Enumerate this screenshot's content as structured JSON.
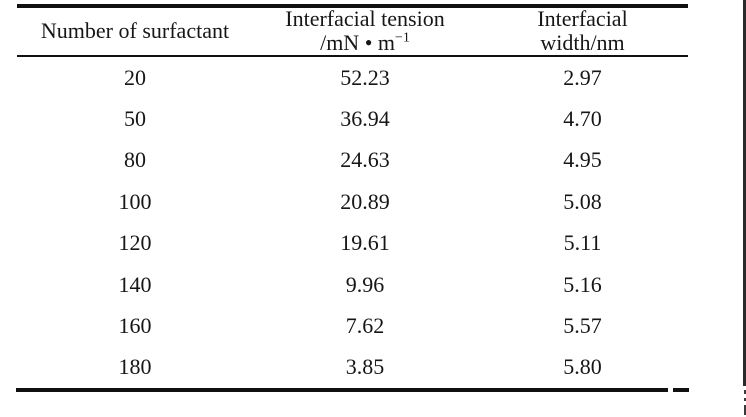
{
  "page": {
    "background": "#ffffff",
    "text_color": "#161616",
    "rule_color": "#111111"
  },
  "table": {
    "header": {
      "col1": "Number of surfactant",
      "col2_line1": "Interfacial tension",
      "col2_unit_base": "/mN • m",
      "col2_unit_sup": "−1",
      "col3_line1": "Interfacial",
      "col3_line2": "width/nm"
    },
    "rows": [
      [
        "20",
        "52.23",
        "2.97"
      ],
      [
        "50",
        "36.94",
        "4.70"
      ],
      [
        "80",
        "24.63",
        "4.95"
      ],
      [
        "100",
        "20.89",
        "5.08"
      ],
      [
        "120",
        "19.61",
        "5.11"
      ],
      [
        "140",
        "9.96",
        "5.16"
      ],
      [
        "160",
        "7.62",
        "5.57"
      ],
      [
        "180",
        "3.85",
        "5.80"
      ]
    ]
  },
  "chart_data": {
    "type": "table",
    "columns": [
      "Number of surfactant",
      "Interfacial tension /mN • m−1",
      "Interfacial width/nm"
    ],
    "rows": [
      [
        20,
        52.23,
        2.97
      ],
      [
        50,
        36.94,
        4.7
      ],
      [
        80,
        24.63,
        4.95
      ],
      [
        100,
        20.89,
        5.08
      ],
      [
        120,
        19.61,
        5.11
      ],
      [
        140,
        9.96,
        5.16
      ],
      [
        160,
        7.62,
        5.57
      ],
      [
        180,
        3.85,
        5.8
      ]
    ]
  }
}
